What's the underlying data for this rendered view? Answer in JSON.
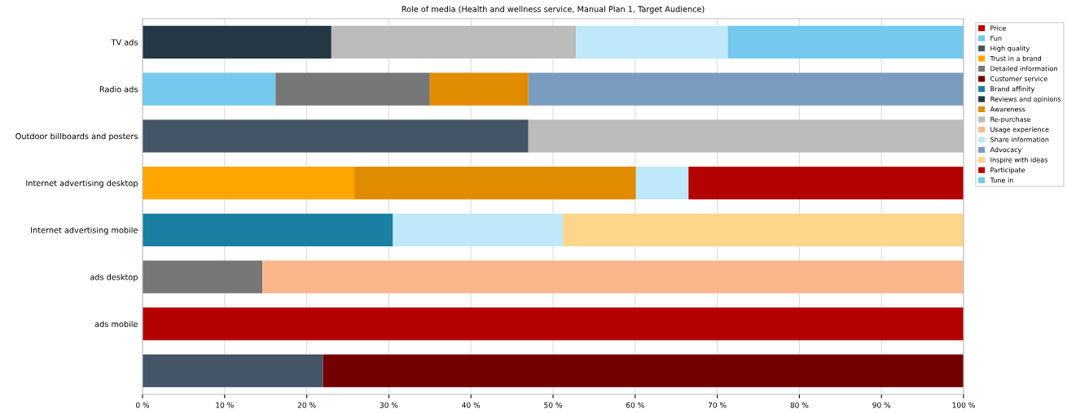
{
  "chart_data": {
    "type": "bar",
    "orientation": "horizontal",
    "stacked": true,
    "title": "Role of media (Health and wellness service, Manual Plan 1, Target Audience)",
    "categories": [
      "TV ads",
      "Radio ads",
      "Outdoor billboards and posters",
      "Internet advertising desktop",
      "Internet advertising mobile",
      "ads desktop",
      "ads mobile",
      null
    ],
    "series": [
      {
        "name": "Price",
        "color": "#b30000",
        "values": [
          null,
          null,
          null,
          null,
          null,
          null,
          null,
          null
        ]
      },
      {
        "name": "Fun",
        "color": "#75c9ee",
        "values": [
          null,
          16.2,
          null,
          null,
          null,
          null,
          null,
          null
        ]
      },
      {
        "name": "High quality",
        "color": "#435566",
        "values": [
          null,
          null,
          47,
          null,
          null,
          null,
          null,
          22
        ]
      },
      {
        "name": "Trust in a brand",
        "color": "#ffa500",
        "values": [
          null,
          null,
          null,
          25.8,
          null,
          null,
          null,
          null
        ]
      },
      {
        "name": "Detailed information",
        "color": "#767676",
        "values": [
          null,
          18.8,
          null,
          null,
          null,
          14.6,
          null,
          null
        ]
      },
      {
        "name": "Customer service",
        "color": "#720000",
        "values": [
          null,
          null,
          null,
          null,
          null,
          null,
          null,
          78
        ]
      },
      {
        "name": "Brand affinity",
        "color": "#1a7fa3",
        "values": [
          null,
          null,
          null,
          null,
          30.5,
          null,
          null,
          null
        ]
      },
      {
        "name": "Reviews and opinions",
        "color": "#263746",
        "values": [
          23,
          null,
          null,
          null,
          null,
          null,
          null,
          null
        ]
      },
      {
        "name": "Awareness",
        "color": "#e08b00",
        "values": [
          null,
          12,
          null,
          34.3,
          null,
          null,
          null,
          null
        ]
      },
      {
        "name": "Re-purchase",
        "color": "#bcbcbc",
        "values": [
          29.8,
          null,
          53,
          null,
          null,
          null,
          null,
          null
        ]
      },
      {
        "name": "Usage experience",
        "color": "#fdb68b",
        "values": [
          null,
          null,
          null,
          null,
          null,
          85.4,
          null,
          null
        ]
      },
      {
        "name": "Share information",
        "color": "#bfe9fb",
        "values": [
          18.5,
          null,
          null,
          6.4,
          20.7,
          null,
          null,
          null
        ]
      },
      {
        "name": "Advocacy",
        "color": "#7a9cc0",
        "values": [
          null,
          53,
          null,
          null,
          null,
          null,
          null,
          null
        ]
      },
      {
        "name": "Inspire with ideas",
        "color": "#fdd68b",
        "values": [
          null,
          null,
          null,
          null,
          48.8,
          null,
          null,
          null
        ]
      },
      {
        "name": "Participate",
        "color": "#b30000",
        "values": [
          null,
          null,
          null,
          33.5,
          null,
          null,
          100,
          null
        ]
      },
      {
        "name": "Tune in",
        "color": "#75c9ee",
        "values": [
          28.7,
          null,
          null,
          null,
          null,
          null,
          null,
          null
        ]
      }
    ],
    "xlim": [
      0,
      100
    ],
    "xticks": [
      {
        "value": 0,
        "label": "0 %"
      },
      {
        "value": 10,
        "label": "10 %"
      },
      {
        "value": 20,
        "label": "20 %"
      },
      {
        "value": 30,
        "label": "30 %"
      },
      {
        "value": 40,
        "label": "40 %"
      },
      {
        "value": 50,
        "label": "50 %"
      },
      {
        "value": 60,
        "label": "60 %"
      },
      {
        "value": 70,
        "label": "70 %"
      },
      {
        "value": 80,
        "label": "80 %"
      },
      {
        "value": 90,
        "label": "90 %"
      },
      {
        "value": 100,
        "label": "100 %"
      }
    ],
    "grid": "x",
    "legend": "right"
  }
}
